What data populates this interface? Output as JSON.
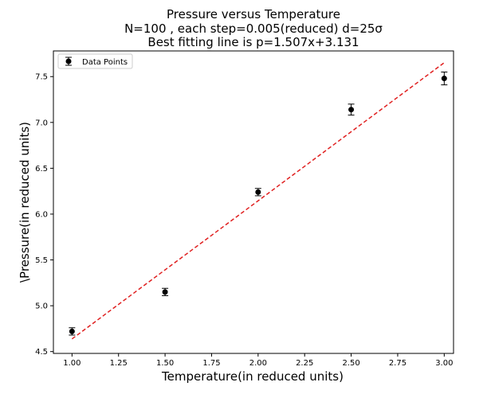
{
  "chart_data": {
    "type": "scatter",
    "title": [
      "Pressure versus Temperature",
      "N=100 , each step=0.005(reduced) d=25σ",
      "Best fitting line is p=1.507x+3.131"
    ],
    "xlabel": "Temperature(in reduced units)",
    "ylabel": "\\Pressure(in reduced units)",
    "xlim": [
      0.9,
      3.05
    ],
    "ylim": [
      4.48,
      7.78
    ],
    "xticks": [
      "1.00",
      "1.25",
      "1.50",
      "1.75",
      "2.00",
      "2.25",
      "2.50",
      "2.75",
      "3.00"
    ],
    "yticks": [
      "4.5",
      "5.0",
      "5.5",
      "6.0",
      "6.5",
      "7.0",
      "7.5"
    ],
    "grid": false,
    "legend": {
      "position": "top-left",
      "entries": [
        "Data Points"
      ]
    },
    "series": [
      {
        "name": "Data Points",
        "kind": "errorbar",
        "color": "#000000",
        "x": [
          1.0,
          1.5,
          2.0,
          2.5,
          3.0
        ],
        "y": [
          4.72,
          5.15,
          6.24,
          7.14,
          7.48
        ],
        "yerr": [
          0.04,
          0.04,
          0.04,
          0.06,
          0.07
        ]
      },
      {
        "kind": "fit-line",
        "color": "#e02020",
        "style": "dashed",
        "slope": 1.507,
        "intercept": 3.131,
        "x_range": [
          1.0,
          3.0
        ]
      }
    ]
  }
}
